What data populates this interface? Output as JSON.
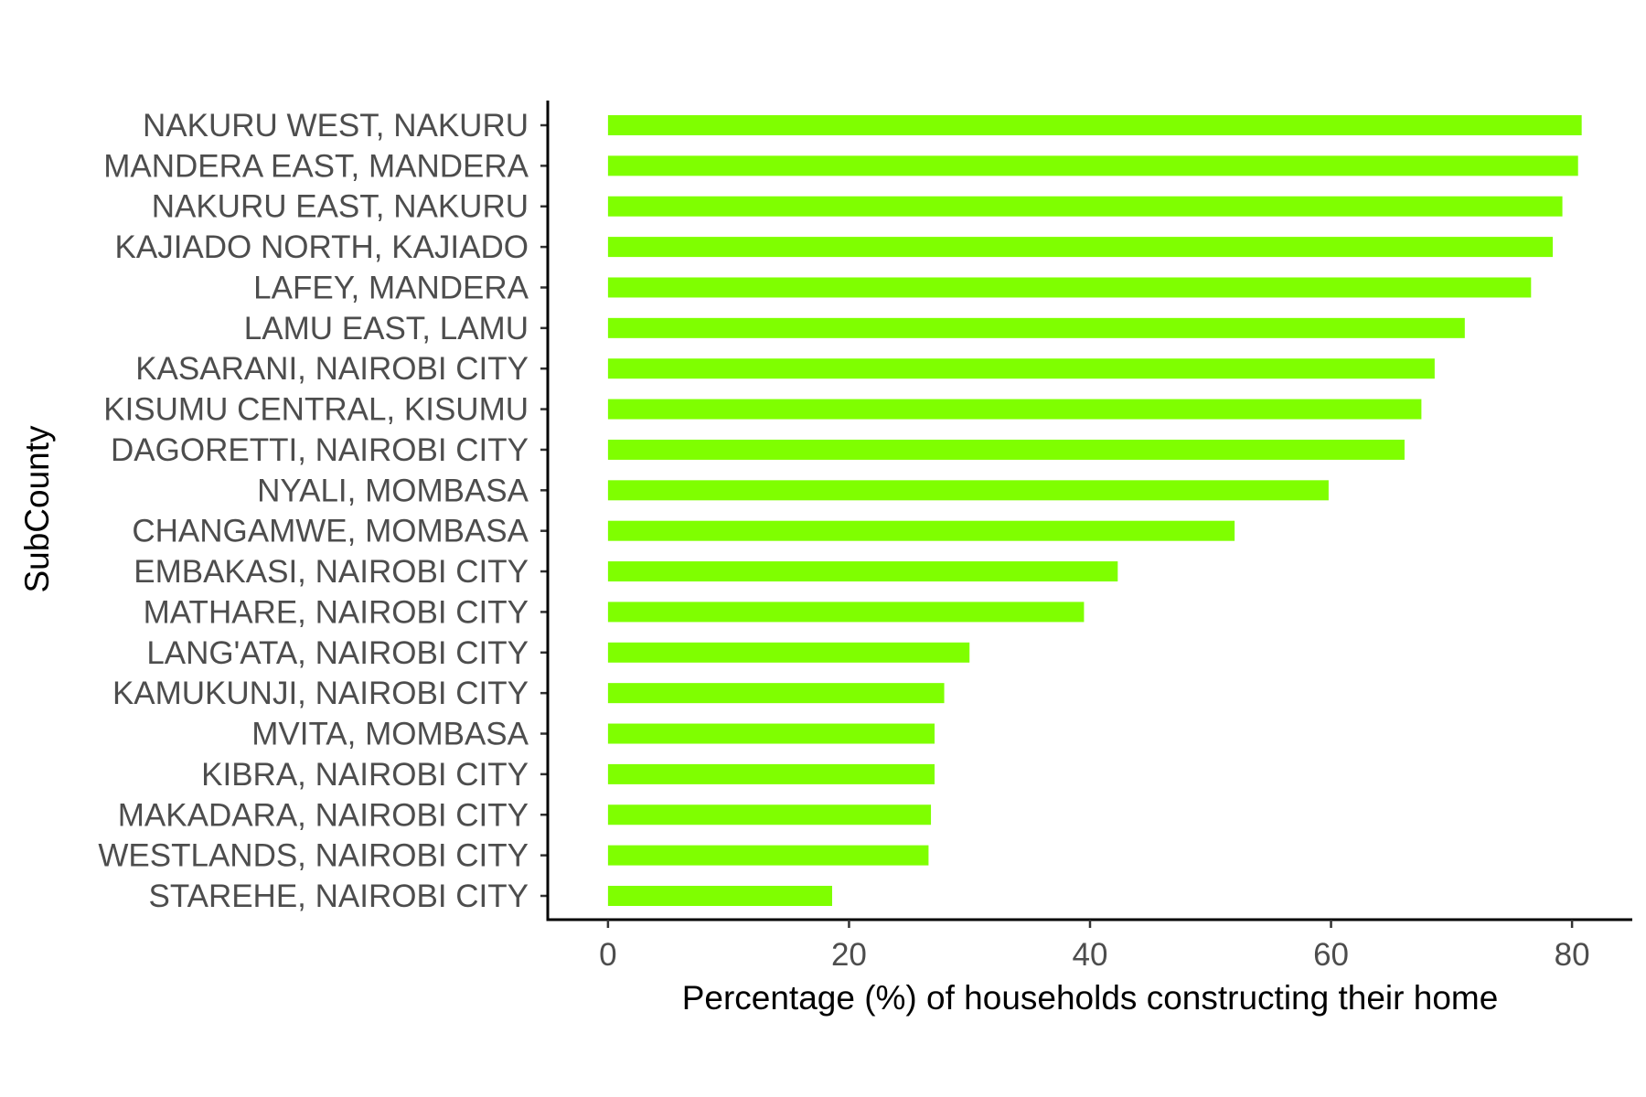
{
  "chart_data": {
    "type": "bar",
    "orientation": "horizontal",
    "title": "",
    "xlabel": "Percentage (%) of households constructing their home",
    "ylabel": "SubCounty",
    "xlim": [
      -5,
      85
    ],
    "xticks": [
      0,
      20,
      40,
      60,
      80
    ],
    "grid": false,
    "legend": "none",
    "bar_color": "#7FFF00",
    "categories": [
      "NAKURU WEST, NAKURU",
      "MANDERA EAST, MANDERA",
      "NAKURU EAST, NAKURU",
      "KAJIADO NORTH, KAJIADO",
      "LAFEY, MANDERA",
      "LAMU EAST, LAMU",
      "KASARANI, NAIROBI CITY",
      "KISUMU CENTRAL, KISUMU",
      "DAGORETTI, NAIROBI CITY",
      "NYALI, MOMBASA",
      "CHANGAMWE, MOMBASA",
      "EMBAKASI, NAIROBI CITY",
      "MATHARE, NAIROBI CITY",
      "LANG'ATA, NAIROBI CITY",
      "KAMUKUNJI, NAIROBI CITY",
      "MVITA, MOMBASA",
      "KIBRA, NAIROBI CITY",
      "MAKADARA, NAIROBI CITY",
      "WESTLANDS, NAIROBI CITY",
      "STAREHE, NAIROBI CITY"
    ],
    "values": [
      80.8,
      80.5,
      79.2,
      78.4,
      76.6,
      71.1,
      68.6,
      67.5,
      66.1,
      59.8,
      52.0,
      42.3,
      39.5,
      30.0,
      27.9,
      27.1,
      27.1,
      26.8,
      26.6,
      18.6
    ]
  }
}
